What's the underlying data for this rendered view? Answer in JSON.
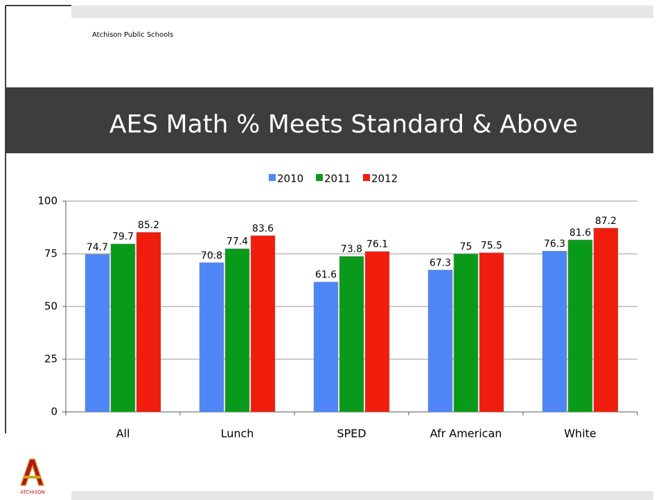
{
  "header": {
    "org": "Atchison Public Schools"
  },
  "logo": {
    "text": "ATCHISON"
  },
  "chart_data": {
    "type": "bar",
    "title": "AES Math % Meets Standard & Above",
    "categories": [
      "All",
      "Lunch",
      "SPED",
      "Afr American",
      "White"
    ],
    "series": [
      {
        "name": "2010",
        "color": "#4f86f7",
        "values": [
          74.7,
          70.8,
          61.6,
          67.3,
          76.3
        ]
      },
      {
        "name": "2011",
        "color": "#0a9a1a",
        "values": [
          79.7,
          77.4,
          73.8,
          75,
          81.6
        ]
      },
      {
        "name": "2012",
        "color": "#f01c0c",
        "values": [
          85.2,
          83.6,
          76.1,
          75.5,
          87.2
        ]
      }
    ],
    "ylim": [
      0,
      100
    ],
    "yticks": [
      0,
      25,
      50,
      75,
      100
    ],
    "grid": true,
    "legend": "top"
  }
}
